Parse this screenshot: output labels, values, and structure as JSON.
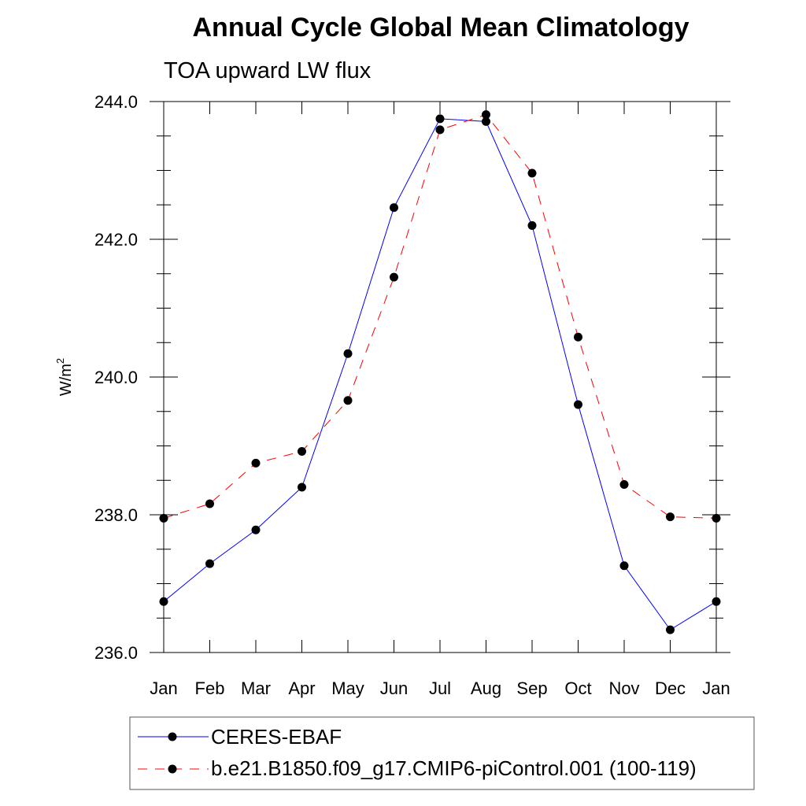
{
  "chart_data": {
    "type": "line",
    "title": "Annual Cycle Global Mean Climatology",
    "subtitle": "TOA upward LW flux",
    "ylabel": {
      "base": "W/m",
      "superscript": "2"
    },
    "xlabel": "",
    "categories": [
      "Jan",
      "Feb",
      "Mar",
      "Apr",
      "May",
      "Jun",
      "Jul",
      "Aug",
      "Sep",
      "Oct",
      "Nov",
      "Dec",
      "Jan"
    ],
    "ylim": [
      236.0,
      244.0
    ],
    "yticks": [
      236.0,
      238.0,
      240.0,
      242.0,
      244.0
    ],
    "ytick_labels": [
      "236.0",
      "238.0",
      "240.0",
      "242.0",
      "244.0"
    ],
    "series": [
      {
        "name": "CERES-EBAF",
        "color": "#0000ff",
        "dash": "solid",
        "values": [
          236.74,
          237.29,
          237.78,
          238.4,
          240.34,
          242.46,
          243.75,
          243.71,
          242.2,
          239.6,
          237.26,
          236.33,
          236.74
        ]
      },
      {
        "name": "b.e21.B1850.f09_g17.CMIP6-piControl.001 (100-119)",
        "color": "#ff0000",
        "dash": "dashed",
        "values": [
          237.95,
          238.16,
          238.75,
          238.92,
          239.66,
          241.45,
          243.59,
          243.81,
          242.96,
          240.58,
          238.44,
          237.97,
          237.95
        ]
      }
    ],
    "legend_position": "bottom"
  }
}
